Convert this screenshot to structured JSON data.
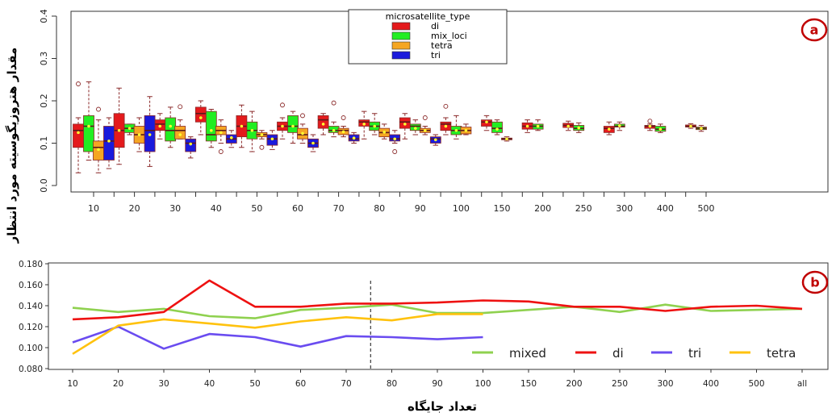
{
  "ylabel_a": "مقدار هتروزیگوسیته مورد انتظار",
  "xlabel_b": "تعداد جایگاه",
  "chart_data": [
    {
      "type": "box",
      "panel_label": "a",
      "ylim": [
        0,
        0.4
      ],
      "y_ticks": [
        "0.0",
        "0.1",
        "0.2",
        "0.3",
        "0.4"
      ],
      "y_tick_values": [
        0,
        0.1,
        0.2,
        0.3,
        0.4
      ],
      "categories": [
        "10",
        "20",
        "30",
        "40",
        "50",
        "60",
        "70",
        "80",
        "90",
        "100",
        "150",
        "200",
        "250",
        "300",
        "400",
        "500"
      ],
      "legend_title": "microsatellite_type",
      "colors": {
        "di": "#e41a1c",
        "mix_loci": "#22ee22",
        "tetra": "#f5a623",
        "tri": "#1a1adc"
      },
      "series": [
        {
          "name": "di",
          "key": "di",
          "boxes": [
            {
              "min": 0.03,
              "q1": 0.09,
              "med": 0.13,
              "q3": 0.145,
              "max": 0.16,
              "mean": 0.125,
              "out": [
                0.24
              ]
            },
            {
              "min": 0.05,
              "q1": 0.09,
              "med": 0.13,
              "q3": 0.17,
              "max": 0.23,
              "mean": 0.13,
              "out": []
            },
            {
              "min": 0.11,
              "q1": 0.13,
              "med": 0.145,
              "q3": 0.155,
              "max": 0.17,
              "mean": 0.14,
              "out": []
            },
            {
              "min": 0.12,
              "q1": 0.15,
              "med": 0.17,
              "q3": 0.185,
              "max": 0.2,
              "mean": 0.16,
              "out": []
            },
            {
              "min": 0.09,
              "q1": 0.115,
              "med": 0.14,
              "q3": 0.165,
              "max": 0.19,
              "mean": 0.14,
              "out": []
            },
            {
              "min": 0.11,
              "q1": 0.13,
              "med": 0.14,
              "q3": 0.15,
              "max": 0.16,
              "mean": 0.14,
              "out": [
                0.19
              ]
            },
            {
              "min": 0.12,
              "q1": 0.135,
              "med": 0.155,
              "q3": 0.165,
              "max": 0.17,
              "mean": 0.145,
              "out": []
            },
            {
              "min": 0.11,
              "q1": 0.14,
              "med": 0.15,
              "q3": 0.155,
              "max": 0.175,
              "mean": 0.145,
              "out": []
            },
            {
              "min": 0.11,
              "q1": 0.135,
              "med": 0.15,
              "q3": 0.16,
              "max": 0.17,
              "mean": 0.145,
              "out": []
            },
            {
              "min": 0.12,
              "q1": 0.13,
              "med": 0.145,
              "q3": 0.15,
              "max": 0.16,
              "mean": 0.14,
              "out": [
                0.187
              ]
            },
            {
              "min": 0.13,
              "q1": 0.14,
              "med": 0.15,
              "q3": 0.155,
              "max": 0.165,
              "mean": 0.15,
              "out": []
            },
            {
              "min": 0.125,
              "q1": 0.133,
              "med": 0.14,
              "q3": 0.148,
              "max": 0.155,
              "mean": 0.14,
              "out": []
            },
            {
              "min": 0.13,
              "q1": 0.137,
              "med": 0.142,
              "q3": 0.147,
              "max": 0.152,
              "mean": 0.14,
              "out": []
            },
            {
              "min": 0.12,
              "q1": 0.125,
              "med": 0.135,
              "q3": 0.14,
              "max": 0.15,
              "mean": 0.133,
              "out": []
            },
            {
              "min": 0.13,
              "q1": 0.135,
              "med": 0.14,
              "q3": 0.142,
              "max": 0.145,
              "mean": 0.14,
              "out": [
                0.152
              ]
            },
            {
              "min": 0.135,
              "q1": 0.138,
              "med": 0.14,
              "q3": 0.143,
              "max": 0.146,
              "mean": 0.14,
              "out": []
            }
          ]
        },
        {
          "name": "mix_loci",
          "key": "mix_loci",
          "boxes": [
            {
              "min": 0.06,
              "q1": 0.08,
              "med": 0.14,
              "q3": 0.165,
              "max": 0.245,
              "mean": 0.14,
              "out": []
            },
            {
              "min": 0.12,
              "q1": 0.125,
              "med": 0.135,
              "q3": 0.145,
              "max": 0.145,
              "mean": 0.135,
              "out": []
            },
            {
              "min": 0.09,
              "q1": 0.105,
              "med": 0.13,
              "q3": 0.16,
              "max": 0.185,
              "mean": 0.14,
              "out": []
            },
            {
              "min": 0.09,
              "q1": 0.105,
              "med": 0.12,
              "q3": 0.175,
              "max": 0.18,
              "mean": 0.13,
              "out": []
            },
            {
              "min": 0.08,
              "q1": 0.11,
              "med": 0.13,
              "q3": 0.15,
              "max": 0.175,
              "mean": 0.13,
              "out": []
            },
            {
              "min": 0.1,
              "q1": 0.125,
              "med": 0.14,
              "q3": 0.165,
              "max": 0.175,
              "mean": 0.14,
              "out": []
            },
            {
              "min": 0.115,
              "q1": 0.125,
              "med": 0.13,
              "q3": 0.14,
              "max": 0.15,
              "mean": 0.13,
              "out": [
                0.195
              ]
            },
            {
              "min": 0.12,
              "q1": 0.13,
              "med": 0.14,
              "q3": 0.15,
              "max": 0.17,
              "mean": 0.14,
              "out": []
            },
            {
              "min": 0.12,
              "q1": 0.13,
              "med": 0.14,
              "q3": 0.145,
              "max": 0.155,
              "mean": 0.135,
              "out": []
            },
            {
              "min": 0.11,
              "q1": 0.12,
              "med": 0.13,
              "q3": 0.14,
              "max": 0.165,
              "mean": 0.13,
              "out": []
            },
            {
              "min": 0.12,
              "q1": 0.125,
              "med": 0.135,
              "q3": 0.15,
              "max": 0.155,
              "mean": 0.133,
              "out": []
            },
            {
              "min": 0.13,
              "q1": 0.133,
              "med": 0.14,
              "q3": 0.145,
              "max": 0.155,
              "mean": 0.14,
              "out": []
            },
            {
              "min": 0.125,
              "q1": 0.13,
              "med": 0.135,
              "q3": 0.142,
              "max": 0.148,
              "mean": 0.136,
              "out": []
            },
            {
              "min": 0.13,
              "q1": 0.138,
              "med": 0.14,
              "q3": 0.145,
              "max": 0.15,
              "mean": 0.141,
              "out": []
            },
            {
              "min": 0.125,
              "q1": 0.128,
              "med": 0.133,
              "q3": 0.14,
              "max": 0.145,
              "mean": 0.133,
              "out": []
            },
            {
              "min": 0.128,
              "q1": 0.132,
              "med": 0.135,
              "q3": 0.138,
              "max": 0.142,
              "mean": 0.135,
              "out": []
            }
          ]
        },
        {
          "name": "tetra",
          "key": "tetra",
          "boxes": [
            {
              "min": 0.03,
              "q1": 0.06,
              "med": 0.09,
              "q3": 0.105,
              "max": 0.155,
              "mean": 0.085,
              "out": [
                0.18
              ]
            },
            {
              "min": 0.08,
              "q1": 0.1,
              "med": 0.12,
              "q3": 0.14,
              "max": 0.16,
              "mean": 0.12,
              "out": []
            },
            {
              "min": 0.11,
              "q1": 0.11,
              "med": 0.13,
              "q3": 0.14,
              "max": 0.155,
              "mean": 0.12,
              "out": [
                0.186
              ]
            },
            {
              "min": 0.1,
              "q1": 0.12,
              "med": 0.13,
              "q3": 0.14,
              "max": 0.155,
              "mean": 0.125,
              "out": [
                0.08
              ]
            },
            {
              "min": 0.11,
              "q1": 0.115,
              "med": 0.12,
              "q3": 0.125,
              "max": 0.13,
              "mean": 0.12,
              "out": [
                0.09
              ]
            },
            {
              "min": 0.1,
              "q1": 0.11,
              "med": 0.12,
              "q3": 0.135,
              "max": 0.145,
              "mean": 0.123,
              "out": [
                0.165
              ]
            },
            {
              "min": 0.115,
              "q1": 0.12,
              "med": 0.13,
              "q3": 0.135,
              "max": 0.14,
              "mean": 0.127,
              "out": [
                0.16
              ]
            },
            {
              "min": 0.11,
              "q1": 0.115,
              "med": 0.125,
              "q3": 0.135,
              "max": 0.145,
              "mean": 0.126,
              "out": []
            },
            {
              "min": 0.12,
              "q1": 0.125,
              "med": 0.13,
              "q3": 0.135,
              "max": 0.14,
              "mean": 0.13,
              "out": [
                0.16
              ]
            },
            {
              "min": 0.12,
              "q1": 0.122,
              "med": 0.13,
              "q3": 0.138,
              "max": 0.145,
              "mean": 0.13,
              "out": []
            },
            {
              "min": 0.105,
              "q1": 0.108,
              "med": 0.11,
              "q3": 0.112,
              "max": 0.115,
              "mean": 0.11,
              "out": []
            },
            null,
            null,
            null,
            null,
            null
          ]
        },
        {
          "name": "tri",
          "key": "tri",
          "boxes": [
            {
              "min": 0.04,
              "q1": 0.06,
              "med": 0.105,
              "q3": 0.14,
              "max": 0.16,
              "mean": 0.105,
              "out": []
            },
            {
              "min": 0.045,
              "q1": 0.08,
              "med": 0.13,
              "q3": 0.165,
              "max": 0.21,
              "mean": 0.12,
              "out": []
            },
            {
              "min": 0.065,
              "q1": 0.08,
              "med": 0.1,
              "q3": 0.11,
              "max": 0.115,
              "mean": 0.098,
              "out": []
            },
            {
              "min": 0.09,
              "q1": 0.1,
              "med": 0.11,
              "q3": 0.12,
              "max": 0.13,
              "mean": 0.113,
              "out": []
            },
            {
              "min": 0.085,
              "q1": 0.095,
              "med": 0.11,
              "q3": 0.12,
              "max": 0.13,
              "mean": 0.11,
              "out": []
            },
            {
              "min": 0.08,
              "q1": 0.09,
              "med": 0.1,
              "q3": 0.11,
              "max": 0.12,
              "mean": 0.1,
              "out": []
            },
            {
              "min": 0.1,
              "q1": 0.105,
              "med": 0.11,
              "q3": 0.12,
              "max": 0.125,
              "mean": 0.112,
              "out": []
            },
            {
              "min": 0.1,
              "q1": 0.105,
              "med": 0.11,
              "q3": 0.12,
              "max": 0.13,
              "mean": 0.11,
              "out": [
                0.08
              ]
            },
            {
              "min": 0.095,
              "q1": 0.1,
              "med": 0.11,
              "q3": 0.115,
              "max": 0.12,
              "mean": 0.108,
              "out": []
            },
            null,
            null,
            null,
            null,
            null,
            null,
            null
          ]
        }
      ]
    },
    {
      "type": "line",
      "panel_label": "b",
      "x": [
        "10",
        "20",
        "30",
        "40",
        "50",
        "60",
        "70",
        "80",
        "90",
        "100",
        "150",
        "200",
        "250",
        "300",
        "400",
        "500",
        "all"
      ],
      "ylim": [
        0.08,
        0.18
      ],
      "y_ticks": [
        "0.080",
        "0.100",
        "0.120",
        "0.140",
        "0.160",
        "0.180"
      ],
      "y_tick_values": [
        0.08,
        0.1,
        0.12,
        0.14,
        0.16,
        0.18
      ],
      "vline_between": [
        "70",
        "80"
      ],
      "series": [
        {
          "name": "mixed",
          "color": "#8fd14f",
          "values": [
            0.138,
            0.134,
            0.137,
            0.13,
            0.128,
            0.136,
            0.138,
            0.141,
            0.133,
            0.133,
            0.136,
            0.139,
            0.134,
            0.141,
            0.135,
            0.136,
            0.137
          ]
        },
        {
          "name": "di",
          "color": "#ee1111",
          "values": [
            0.127,
            0.129,
            0.134,
            0.164,
            0.139,
            0.139,
            0.142,
            0.142,
            0.143,
            0.145,
            0.144,
            0.139,
            0.139,
            0.135,
            0.139,
            0.14,
            0.137
          ]
        },
        {
          "name": "tri",
          "color": "#6a4cf0",
          "values": [
            0.105,
            0.12,
            0.099,
            0.113,
            0.11,
            0.101,
            0.111,
            0.11,
            0.108,
            0.11,
            null,
            null,
            null,
            null,
            null,
            null,
            null
          ]
        },
        {
          "name": "tetra",
          "color": "#ffc20e",
          "values": [
            0.094,
            0.121,
            0.127,
            0.123,
            0.119,
            0.125,
            0.129,
            0.126,
            0.132,
            0.132,
            null,
            null,
            null,
            null,
            null,
            null,
            null
          ]
        }
      ]
    }
  ]
}
